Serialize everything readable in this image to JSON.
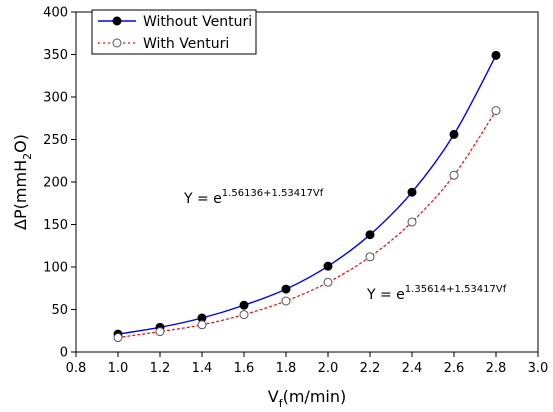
{
  "chart_data": {
    "type": "line",
    "x_axis": {
      "label_main": "V",
      "label_sub": "f",
      "label_tail": "(m/min)",
      "min": 0.8,
      "max": 3.0,
      "ticks": [
        "0.8",
        "1.0",
        "1.2",
        "1.4",
        "1.6",
        "1.8",
        "2.0",
        "2.2",
        "2.4",
        "2.6",
        "2.8",
        "3.0"
      ]
    },
    "y_axis": {
      "label_main": "ΔP(mmH",
      "label_sub": "2",
      "label_tail": "O)",
      "min": 0,
      "max": 400,
      "ticks": [
        "0",
        "50",
        "100",
        "150",
        "200",
        "250",
        "300",
        "350",
        "400"
      ]
    },
    "x": [
      1.0,
      1.2,
      1.4,
      1.6,
      1.8,
      2.0,
      2.2,
      2.4,
      2.6,
      2.8
    ],
    "series": [
      {
        "name": "Without Venturi",
        "color": "#0000ff",
        "line_style": "solid",
        "marker": "filled-circle",
        "values": [
          21,
          29,
          40,
          55,
          74,
          101,
          138,
          188,
          256,
          349
        ]
      },
      {
        "name": "With Venturi",
        "color": "#ff0000",
        "line_style": "dotted",
        "marker": "open-circle",
        "values": [
          17,
          24,
          32,
          44,
          60,
          82,
          112,
          153,
          208,
          284
        ]
      }
    ],
    "annotations": [
      {
        "prefix": "Y = e",
        "exponent": "1.56136+1.53417Vf"
      },
      {
        "prefix": "Y = e",
        "exponent": "1.35614+1.53417Vf"
      }
    ],
    "grid": false,
    "legend_position": "top-left"
  }
}
